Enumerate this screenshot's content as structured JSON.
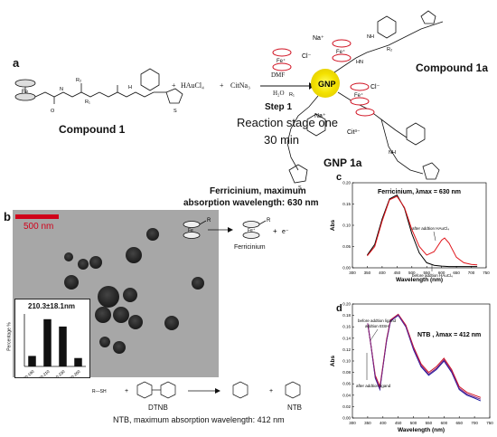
{
  "panel_labels": {
    "a": "a",
    "b": "b",
    "c": "c",
    "d": "d"
  },
  "scheme": {
    "compound1_label": "Compound 1",
    "compound1a_label": "Compound 1a",
    "gnp1a_label": "GNP 1a",
    "gnp_label": "GNP",
    "reagents": {
      "plus1": "+",
      "haucl4": "HAuCl₄",
      "plus2": "+",
      "citna3": "CitNa₃"
    },
    "conditions": {
      "solvent1": "DMF",
      "solvent2": "H₂O",
      "step": "Step 1"
    },
    "stage_text_line1": "Reaction stage one",
    "stage_text_line2": "30 min",
    "ions": {
      "cl1": "Cl⁻",
      "cl2": "Cl⁻",
      "na1": "Na⁺",
      "na2": "Na⁺",
      "cit": "Cit³⁻"
    },
    "atoms": {
      "fe": "Fe",
      "fe_plus": "Fe⁺",
      "R1": "R₁",
      "R2": "R₂",
      "N": "N",
      "H": "H",
      "O": "O",
      "S": "S",
      "NH": "NH",
      "HN": "HN"
    }
  },
  "tem": {
    "scale_bar": "500 nm",
    "inset_title": "210.3±18.1nm",
    "inset_ylabel": "Percentage %",
    "histogram": {
      "categories": [
        "170-190",
        "190-210",
        "210-230",
        "230-260"
      ],
      "values": [
        10,
        45,
        38,
        8
      ]
    }
  },
  "ferricinium": {
    "title_line1": "Ferricinium, maximum",
    "title_line2": "absorption wavelength: 630 nm",
    "product_label": "Ferricinium",
    "R": "R",
    "plus": "+",
    "electron": "e⁻"
  },
  "dtnb": {
    "reactant_label": "DTNB",
    "product_label": "NTB",
    "sh": "R—SH",
    "plus": "+",
    "caption": "NTB, maximum absorption wavelength: 412 nm"
  },
  "chart_data": [
    {
      "type": "line",
      "panel": "c",
      "title": "Ferricinium, λmax = 630 nm",
      "xlabel": "Wavelength (nm)",
      "ylabel": "Abs",
      "xlim": [
        300,
        750
      ],
      "ylim": [
        0,
        0.2
      ],
      "x_ticks": [
        300,
        350,
        400,
        450,
        500,
        550,
        600,
        650,
        700,
        750
      ],
      "y_ticks": [
        0.0,
        0.05,
        0.1,
        0.15,
        0.2
      ],
      "annotations": [
        "after addtion HAuCl₄",
        "before addtion HAuCl₄"
      ],
      "series": [
        {
          "color": "#000000",
          "x": [
            350,
            375,
            400,
            425,
            450,
            475,
            500,
            525,
            550,
            575,
            600,
            625,
            650,
            675,
            700,
            720
          ],
          "y": [
            0.03,
            0.055,
            0.115,
            0.162,
            0.171,
            0.14,
            0.08,
            0.035,
            0.012,
            0.006,
            0.004,
            0.003,
            0.003,
            0.003,
            0.003,
            0.003
          ]
        },
        {
          "color": "#e0151b",
          "x": [
            350,
            375,
            400,
            425,
            450,
            475,
            500,
            525,
            550,
            575,
            600,
            610,
            625,
            650,
            675,
            700,
            720
          ],
          "y": [
            0.028,
            0.05,
            0.11,
            0.16,
            0.168,
            0.142,
            0.09,
            0.05,
            0.03,
            0.038,
            0.065,
            0.07,
            0.058,
            0.025,
            0.012,
            0.008,
            0.007
          ]
        }
      ]
    },
    {
      "type": "line",
      "panel": "d",
      "title": "NTB , λmax = 412 nm",
      "xlabel": "Wavelength (nm)",
      "ylabel": "Abs",
      "xlim": [
        300,
        750
      ],
      "ylim": [
        0,
        0.2
      ],
      "x_ticks": [
        300,
        350,
        400,
        450,
        500,
        550,
        600,
        650,
        700,
        750
      ],
      "y_ticks": [
        0.0,
        0.02,
        0.04,
        0.06,
        0.08,
        0.1,
        0.12,
        0.14,
        0.16,
        0.18,
        0.2
      ],
      "annotations": [
        "before addtion ligand",
        "addtion EtSH",
        "after addtion ligand"
      ],
      "series": [
        {
          "color": "#1a1aa0",
          "x": [
            350,
            360,
            375,
            390,
            400,
            412,
            425,
            450,
            475,
            500,
            525,
            550,
            575,
            600,
            625,
            650,
            675,
            700,
            720
          ],
          "y": [
            0.166,
            0.13,
            0.07,
            0.05,
            0.09,
            0.135,
            0.17,
            0.18,
            0.16,
            0.12,
            0.09,
            0.075,
            0.085,
            0.1,
            0.08,
            0.05,
            0.04,
            0.035,
            0.03
          ]
        },
        {
          "color": "#d01020",
          "x": [
            350,
            360,
            375,
            390,
            400,
            412,
            425,
            450,
            475,
            500,
            525,
            550,
            575,
            600,
            625,
            650,
            675,
            700,
            720
          ],
          "y": [
            0.166,
            0.13,
            0.075,
            0.055,
            0.092,
            0.138,
            0.172,
            0.182,
            0.163,
            0.125,
            0.095,
            0.08,
            0.09,
            0.105,
            0.085,
            0.055,
            0.045,
            0.04,
            0.036
          ]
        },
        {
          "color": "#7a2080",
          "x": [
            350,
            360,
            375,
            390,
            400,
            412,
            425,
            450,
            475,
            500,
            525,
            550,
            575,
            600,
            625,
            650,
            675,
            700,
            720
          ],
          "y": [
            0.166,
            0.13,
            0.072,
            0.052,
            0.09,
            0.136,
            0.171,
            0.181,
            0.161,
            0.122,
            0.092,
            0.077,
            0.087,
            0.102,
            0.082,
            0.052,
            0.042,
            0.037,
            0.033
          ]
        }
      ]
    }
  ]
}
